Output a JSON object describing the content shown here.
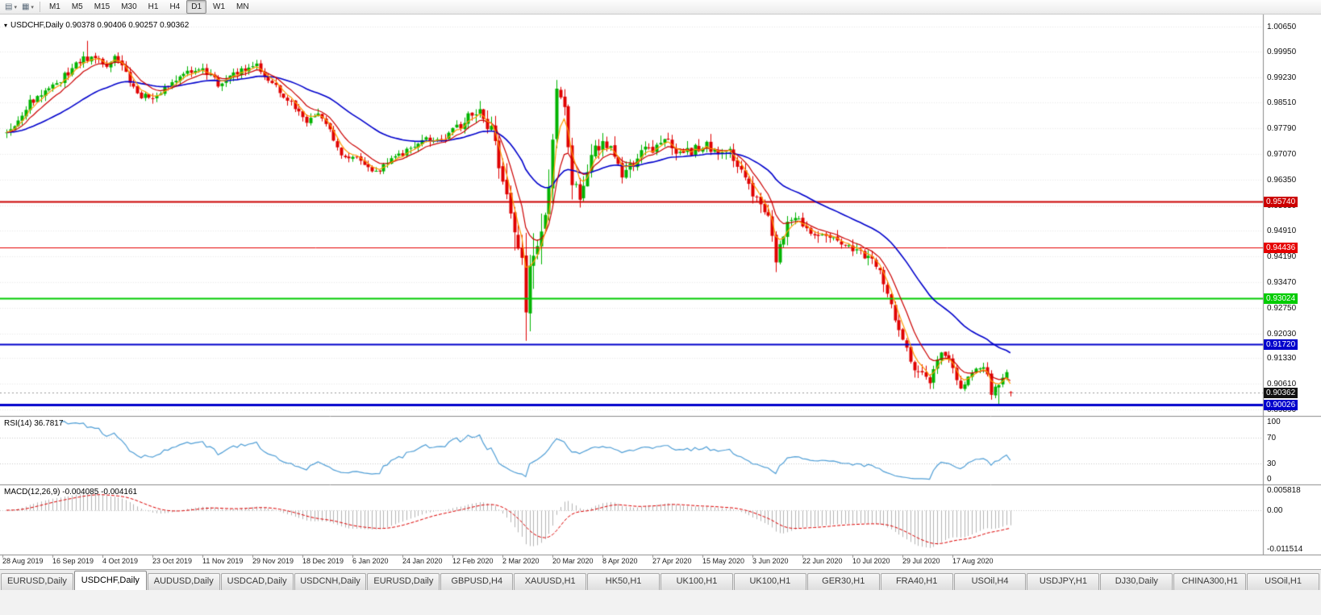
{
  "toolbar": {
    "tools": [
      {
        "name": "chart-shift-icon",
        "glyph": "▤"
      },
      {
        "name": "chart-mode-icon",
        "glyph": "▦"
      }
    ],
    "timeframes": [
      "M1",
      "M5",
      "M15",
      "M30",
      "H1",
      "H4",
      "D1",
      "W1",
      "MN"
    ],
    "active_timeframe": "D1"
  },
  "main_chart": {
    "header": "USDCHF,Daily 0.90378 0.90406 0.90257 0.90362",
    "symbol": "USDCHF",
    "period": "Daily",
    "ohlc": {
      "open": "0.90378",
      "high": "0.90406",
      "low": "0.90257",
      "close": "0.90362"
    },
    "price_axis": [
      "1.00650",
      "0.99950",
      "0.99230",
      "0.98510",
      "0.97790",
      "0.97070",
      "0.96350",
      "0.95630",
      "0.94910",
      "0.94190",
      "0.93470",
      "0.92750",
      "0.92030",
      "0.91330",
      "0.90610",
      "0.89890"
    ],
    "levels": [
      {
        "price": 0.9574,
        "label": "0.95740",
        "color": "#cc0000",
        "width": 2
      },
      {
        "price": 0.94436,
        "label": "0.94436",
        "color": "#e60000",
        "width": 1
      },
      {
        "price": 0.93024,
        "label": "0.93024",
        "color": "#00cc00",
        "width": 2
      },
      {
        "price": 0.9172,
        "label": "0.91720",
        "color": "#0000cc",
        "width": 2
      },
      {
        "price": 0.90026,
        "label": "0.90026",
        "color": "#0000cc",
        "width": 3
      }
    ],
    "current_price": {
      "value": 0.90362,
      "label": "0.90362",
      "color": "#111111"
    }
  },
  "rsi": {
    "header": "RSI(14) 36.7817",
    "period": 14,
    "value": 36.7817,
    "axis": [
      "100",
      "70",
      "30",
      "0"
    ]
  },
  "macd": {
    "header": "MACD(12,26,9) -0.004085 -0.004161",
    "value": -0.004085,
    "signal_value": -0.004161,
    "axis": [
      "0.005818",
      "0.00",
      "-0.011514"
    ]
  },
  "date_axis": [
    "28 Aug 2019",
    "16 Sep 2019",
    "4 Oct 2019",
    "23 Oct 2019",
    "11 Nov 2019",
    "29 Nov 2019",
    "18 Dec 2019",
    "6 Jan 2020",
    "24 Jan 2020",
    "12 Feb 2020",
    "2 Mar 2020",
    "20 Mar 2020",
    "8 Apr 2020",
    "27 Apr 2020",
    "15 May 2020",
    "3 Jun 2020",
    "22 Jun 2020",
    "10 Jul 2020",
    "29 Jul 2020",
    "17 Aug 2020"
  ],
  "tabs": [
    {
      "label": "EURUSD,Daily",
      "active": false
    },
    {
      "label": "USDCHF,Daily",
      "active": true
    },
    {
      "label": "AUDUSD,Daily",
      "active": false
    },
    {
      "label": "USDCAD,Daily",
      "active": false
    },
    {
      "label": "USDCNH,Daily",
      "active": false
    },
    {
      "label": "EURUSD,Daily",
      "active": false
    },
    {
      "label": "GBPUSD,H4",
      "active": false
    },
    {
      "label": "XAUUSD,H1",
      "active": false
    },
    {
      "label": "HK50,H1",
      "active": false
    },
    {
      "label": "UK100,H1",
      "active": false
    },
    {
      "label": "UK100,H1",
      "active": false
    },
    {
      "label": "GER30,H1",
      "active": false
    },
    {
      "label": "FRA40,H1",
      "active": false
    },
    {
      "label": "USOil,H4",
      "active": false
    },
    {
      "label": "USDJPY,H1",
      "active": false
    },
    {
      "label": "DJ30,Daily",
      "active": false
    },
    {
      "label": "CHINA300,H1",
      "active": false
    },
    {
      "label": "USOil,H1",
      "active": false
    }
  ],
  "colors": {
    "up": "#00b400",
    "down": "#e00000",
    "ma_fast": "#ff9900",
    "ma_mid": "#cc0000",
    "ma_slow": "#0000cc",
    "rsi_line": "#4f9ed6",
    "macd_hist": "#b4b4b4",
    "macd_signal": "#dd0000",
    "grid": "#e9e9e9",
    "panel_border": "#8c8c8c"
  },
  "chart_data": {
    "type": "candlestick",
    "symbol": "USDCHF",
    "timeframe": "Daily",
    "candle_count": 262,
    "price_axis_top": 1.0065,
    "price_axis_bottom": 0.8989,
    "last_candle": {
      "open": 0.90378,
      "high": 0.90406,
      "low": 0.90257,
      "close": 0.90362
    },
    "horizontal_levels": [
      0.9574,
      0.94436,
      0.93024,
      0.9172,
      0.90026
    ],
    "close_anchors": [
      [
        0,
        0.977
      ],
      [
        3,
        0.98
      ],
      [
        6,
        0.9855
      ],
      [
        10,
        0.988
      ],
      [
        13,
        0.99
      ],
      [
        17,
        0.995
      ],
      [
        20,
        0.9975
      ],
      [
        23,
        0.9985
      ],
      [
        26,
        0.9958
      ],
      [
        28,
        0.9985
      ],
      [
        31,
        0.993
      ],
      [
        35,
        0.9868
      ],
      [
        39,
        0.9862
      ],
      [
        43,
        0.9915
      ],
      [
        47,
        0.9945
      ],
      [
        52,
        0.9938
      ],
      [
        55,
        0.9905
      ],
      [
        58,
        0.9925
      ],
      [
        62,
        0.9948
      ],
      [
        65,
        0.9952
      ],
      [
        68,
        0.9915
      ],
      [
        71,
        0.9882
      ],
      [
        74,
        0.9855
      ],
      [
        78,
        0.9802
      ],
      [
        81,
        0.982
      ],
      [
        84,
        0.9775
      ],
      [
        87,
        0.9705
      ],
      [
        91,
        0.97
      ],
      [
        94,
        0.9665
      ],
      [
        97,
        0.966
      ],
      [
        100,
        0.969
      ],
      [
        104,
        0.9712
      ],
      [
        107,
        0.9738
      ],
      [
        110,
        0.9752
      ],
      [
        113,
        0.9745
      ],
      [
        117,
        0.9778
      ],
      [
        120,
        0.9812
      ],
      [
        123,
        0.9835
      ],
      [
        126,
        0.9772
      ],
      [
        128,
        0.9685
      ],
      [
        130,
        0.9592
      ],
      [
        132,
        0.952
      ],
      [
        134,
        0.94
      ],
      [
        135,
        0.929
      ],
      [
        136,
        0.9355
      ],
      [
        137,
        0.9385
      ],
      [
        139,
        0.95
      ],
      [
        141,
        0.963
      ],
      [
        143,
        0.9858
      ],
      [
        145,
        0.9808
      ],
      [
        147,
        0.9635
      ],
      [
        149,
        0.96
      ],
      [
        151,
        0.9678
      ],
      [
        153,
        0.972
      ],
      [
        156,
        0.9735
      ],
      [
        158,
        0.97
      ],
      [
        160,
        0.9642
      ],
      [
        163,
        0.968
      ],
      [
        165,
        0.971
      ],
      [
        169,
        0.9725
      ],
      [
        172,
        0.9742
      ],
      [
        175,
        0.9702
      ],
      [
        178,
        0.9716
      ],
      [
        182,
        0.973
      ],
      [
        185,
        0.9714
      ],
      [
        188,
        0.9708
      ],
      [
        191,
        0.9672
      ],
      [
        193,
        0.962
      ],
      [
        195,
        0.9588
      ],
      [
        197,
        0.9558
      ],
      [
        199,
        0.9478
      ],
      [
        200,
        0.942
      ],
      [
        201,
        0.9452
      ],
      [
        203,
        0.9502
      ],
      [
        205,
        0.9522
      ],
      [
        208,
        0.95
      ],
      [
        210,
        0.9482
      ],
      [
        212,
        0.9492
      ],
      [
        214,
        0.947
      ],
      [
        216,
        0.946
      ],
      [
        218,
        0.9446
      ],
      [
        221,
        0.9438
      ],
      [
        223,
        0.9422
      ],
      [
        225,
        0.9408
      ],
      [
        227,
        0.9378
      ],
      [
        228,
        0.933
      ],
      [
        230,
        0.9282
      ],
      [
        231,
        0.9232
      ],
      [
        233,
        0.9198
      ],
      [
        234,
        0.9162
      ],
      [
        236,
        0.911
      ],
      [
        238,
        0.9096
      ],
      [
        240,
        0.9072
      ],
      [
        242,
        0.9132
      ],
      [
        243,
        0.9158
      ],
      [
        245,
        0.914
      ],
      [
        247,
        0.9062
      ],
      [
        248,
        0.9046
      ],
      [
        250,
        0.9086
      ],
      [
        252,
        0.91
      ],
      [
        254,
        0.911
      ],
      [
        256,
        0.9042
      ],
      [
        258,
        0.9068
      ],
      [
        260,
        0.9092
      ],
      [
        261,
        0.90362
      ]
    ],
    "volatility_anchors": [
      [
        0,
        0.003
      ],
      [
        60,
        0.0028
      ],
      [
        100,
        0.0026
      ],
      [
        120,
        0.0034
      ],
      [
        127,
        0.0055
      ],
      [
        130,
        0.01
      ],
      [
        136,
        0.0125
      ],
      [
        143,
        0.0105
      ],
      [
        148,
        0.0075
      ],
      [
        155,
        0.0048
      ],
      [
        170,
        0.0038
      ],
      [
        190,
        0.0042
      ],
      [
        200,
        0.0055
      ],
      [
        206,
        0.0038
      ],
      [
        220,
        0.0032
      ],
      [
        228,
        0.0048
      ],
      [
        240,
        0.0038
      ],
      [
        250,
        0.0032
      ],
      [
        258,
        0.0035
      ],
      [
        261,
        0.0018
      ]
    ],
    "overrides": [
      {
        "i": 21,
        "h": 1.0025
      },
      {
        "i": 135,
        "l": 0.9182
      },
      {
        "i": 143,
        "h": 0.9915
      },
      {
        "i": 200,
        "l": 0.9375
      },
      {
        "i": 258,
        "l": 0.9
      },
      {
        "i": 261,
        "o": 0.90378,
        "h": 0.90406,
        "l": 0.90257,
        "c": 0.90362
      }
    ],
    "indicators": {
      "moving_averages": [
        {
          "period": 4,
          "color": "#ff9900"
        },
        {
          "period": 9,
          "color": "#cc0000"
        },
        {
          "period": 34,
          "color": "#0000cc"
        }
      ],
      "rsi": {
        "period": 14,
        "value": 36.7817,
        "levels": [
          70,
          30
        ]
      },
      "macd": {
        "fast": 12,
        "slow": 26,
        "signal": 9,
        "value": -0.004085,
        "signal_value": -0.004161,
        "axis_max": 0.005818,
        "axis_min": -0.011514
      }
    }
  }
}
